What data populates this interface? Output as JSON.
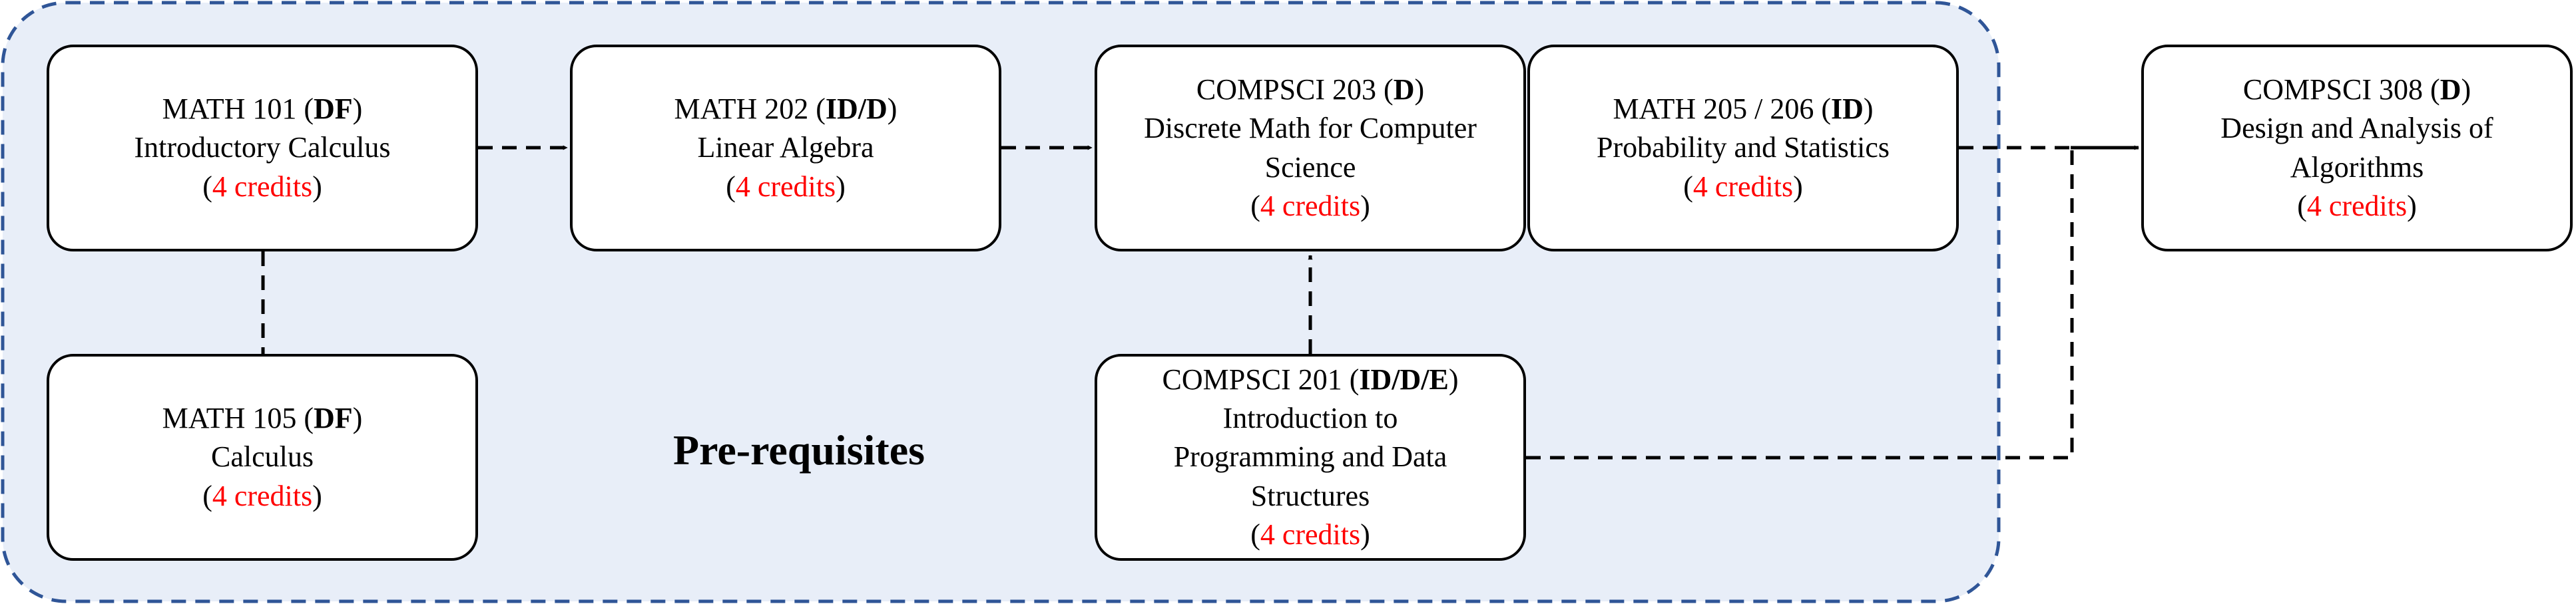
{
  "group": {
    "label": "Pre-requisites",
    "fill_color": "#e8eef8",
    "border_color": "#2f5597"
  },
  "courses": [
    {
      "id": "math101",
      "code": "MATH 101",
      "designation": "DF",
      "title_lines": [
        "Introductory Calculus"
      ],
      "credits": "4 credits"
    },
    {
      "id": "math105",
      "code": "MATH 105",
      "designation": "DF",
      "title_lines": [
        "Calculus"
      ],
      "credits": "4 credits"
    },
    {
      "id": "math202",
      "code": "MATH 202",
      "designation": "ID/D",
      "title_lines": [
        "Linear Algebra"
      ],
      "credits": "4 credits"
    },
    {
      "id": "compsci203",
      "code": "COMPSCI 203",
      "designation": "D",
      "title_lines": [
        "Discrete Math for Computer",
        "Science"
      ],
      "credits": "4 credits"
    },
    {
      "id": "math205",
      "code": "MATH 205 / 206",
      "designation": "ID",
      "title_lines": [
        "Probability and Statistics"
      ],
      "credits": "4 credits"
    },
    {
      "id": "compsci201",
      "code": "COMPSCI 201",
      "designation": "ID/D/E",
      "title_lines": [
        "Introduction to",
        "Programming and Data",
        "Structures"
      ],
      "credits": "4 credits"
    },
    {
      "id": "compsci308",
      "code": "COMPSCI 308",
      "designation": "D",
      "title_lines": [
        "Design and Analysis of",
        "Algorithms"
      ],
      "credits": "4 credits"
    }
  ],
  "colors": {
    "credits_text": "#ff0000",
    "line": "#000000",
    "node_fill": "#ffffff"
  }
}
